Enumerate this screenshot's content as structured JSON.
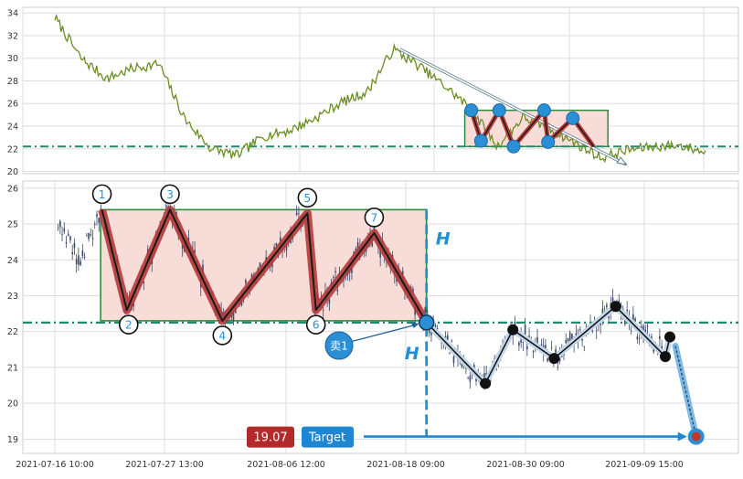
{
  "chart_data": [
    {
      "type": "line",
      "panel": "overview",
      "ylim": [
        19.8,
        34.5
      ],
      "y_ticks": [
        "20",
        "22",
        "24",
        "26",
        "28",
        "30",
        "32",
        "34"
      ],
      "grid": true,
      "series_color": "#6b8e23",
      "x": [
        0,
        0.04,
        0.08,
        0.12,
        0.16,
        0.2,
        0.24,
        0.28,
        0.32,
        0.36,
        0.4,
        0.44,
        0.48,
        0.52,
        0.56,
        0.6,
        0.64,
        0.68,
        0.72,
        0.76,
        0.8,
        0.84,
        0.88,
        0.92,
        0.96,
        1.0
      ],
      "values": [
        33.6,
        30.0,
        28.2,
        29.1,
        29.5,
        24.6,
        22.0,
        21.4,
        23.1,
        23.6,
        24.7,
        26.1,
        27.0,
        30.8,
        29.3,
        27.5,
        25.5,
        22.2,
        24.8,
        23.8,
        22.5,
        21.2,
        21.9,
        22.2,
        22.3,
        21.7
      ],
      "support_line": 22.2,
      "pattern_box": {
        "x_from": 0.63,
        "x_to": 0.85,
        "y_from": 22.2,
        "y_to": 25.4
      },
      "pattern_points": [
        {
          "x": 0.64,
          "y": 25.4
        },
        {
          "x": 0.655,
          "y": 22.7
        },
        {
          "x": 0.683,
          "y": 25.4
        },
        {
          "x": 0.705,
          "y": 22.2
        },
        {
          "x": 0.752,
          "y": 25.4
        },
        {
          "x": 0.758,
          "y": 22.6
        },
        {
          "x": 0.796,
          "y": 24.7
        },
        {
          "x": 0.828,
          "y": 22.2
        }
      ],
      "trend_arrow": {
        "from": {
          "x": 0.53,
          "y": 30.8
        },
        "to": {
          "x": 0.878,
          "y": 20.6
        }
      }
    },
    {
      "type": "candlestick",
      "panel": "detail",
      "ylim": [
        18.6,
        26.2
      ],
      "y_ticks": [
        "19",
        "20",
        "21",
        "22",
        "23",
        "24",
        "25",
        "26"
      ],
      "x_ticks": [
        "2021-07-16 10:00",
        "2021-07-27 13:00",
        "2021-08-06 12:00",
        "2021-08-18 09:00",
        "2021-08-30 09:00",
        "2021-09-09 15:00"
      ],
      "grid": true,
      "candle_color": "#3b4a6b",
      "pattern_box": {
        "x_from": 0.07,
        "x_to": 0.568,
        "y_from": 22.3,
        "y_to": 25.4
      },
      "support_line": 22.25,
      "pattern_points": [
        {
          "label": "1",
          "x": 0.072,
          "y": 25.4
        },
        {
          "label": "2",
          "x": 0.11,
          "y": 22.6
        },
        {
          "label": "3",
          "x": 0.176,
          "y": 25.4
        },
        {
          "label": "4",
          "x": 0.256,
          "y": 22.3
        },
        {
          "label": "5",
          "x": 0.386,
          "y": 25.3
        },
        {
          "label": "6",
          "x": 0.399,
          "y": 22.6
        },
        {
          "label": "7",
          "x": 0.488,
          "y": 24.75
        },
        {
          "label": "",
          "x": 0.568,
          "y": 22.25
        }
      ],
      "future_path": [
        {
          "x": 0.568,
          "y": 22.25
        },
        {
          "x": 0.658,
          "y": 20.55
        },
        {
          "x": 0.7,
          "y": 22.05
        },
        {
          "x": 0.763,
          "y": 21.25
        },
        {
          "x": 0.857,
          "y": 22.7
        },
        {
          "x": 0.933,
          "y": 21.3
        },
        {
          "x": 0.94,
          "y": 21.85
        }
      ],
      "target_point": {
        "x": 0.98,
        "y": 19.07
      },
      "breakout_point": {
        "x": 0.568,
        "y": 22.25
      },
      "height_label": "H",
      "sell_label": "卖1",
      "target_value": "19.07",
      "target_label": "Target",
      "colors": {
        "box_fill": "#f7dcd8",
        "box_stroke": "#2e8b3e",
        "zigzag_glow": "#b53a3a",
        "zigzag_line": "#1a1a1a",
        "support": "#1d8a6e",
        "height": "#1f8fd6",
        "future_glow": "#c3d6e8",
        "target_box": "#b22a2a",
        "target_label_box": "#1f86d1"
      }
    }
  ]
}
